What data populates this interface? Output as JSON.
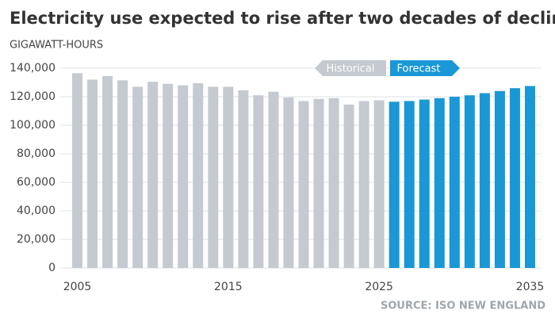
{
  "chart_data": {
    "type": "bar",
    "title": "Electricity use expected to rise after two decades of decline",
    "y_label": "GIGAWATT-HOURS",
    "source": "SOURCE: ISO NEW ENGLAND",
    "categories": [
      "2005",
      null,
      null,
      null,
      null,
      null,
      null,
      null,
      null,
      null,
      "2015",
      null,
      null,
      null,
      null,
      null,
      null,
      null,
      null,
      null,
      "2025",
      null,
      null,
      null,
      null,
      null,
      null,
      null,
      null,
      null,
      "2035"
    ],
    "series": [
      {
        "name": "Historical",
        "color": "#c4cacf",
        "values": [
          136500,
          132000,
          134500,
          131500,
          127000,
          130500,
          129000,
          128000,
          129500,
          127000,
          127000,
          124500,
          121000,
          123500,
          119500,
          117000,
          118500,
          119000,
          114500,
          117000,
          117500,
          null,
          null,
          null,
          null,
          null,
          null,
          null,
          null,
          null,
          null
        ]
      },
      {
        "name": "Forecast",
        "color": "#1a98d5",
        "values": [
          null,
          null,
          null,
          null,
          null,
          null,
          null,
          null,
          null,
          null,
          null,
          null,
          null,
          null,
          null,
          null,
          null,
          null,
          null,
          null,
          null,
          116500,
          117000,
          118000,
          119000,
          120000,
          121000,
          122500,
          124000,
          126000,
          127500
        ]
      }
    ],
    "ylim": [
      0,
      140000
    ],
    "yticks": [
      0,
      {
        "value": 20000,
        "label": "20,000"
      },
      {
        "value": 40000,
        "label": "40,000"
      },
      {
        "value": 60000,
        "label": "60,000"
      },
      {
        "value": 80000,
        "label": "80,000"
      },
      {
        "value": 100000,
        "label": "100,000"
      },
      {
        "value": 120000,
        "label": "120,000"
      },
      {
        "value": 140000,
        "label": "140,000"
      }
    ],
    "grid": true
  }
}
